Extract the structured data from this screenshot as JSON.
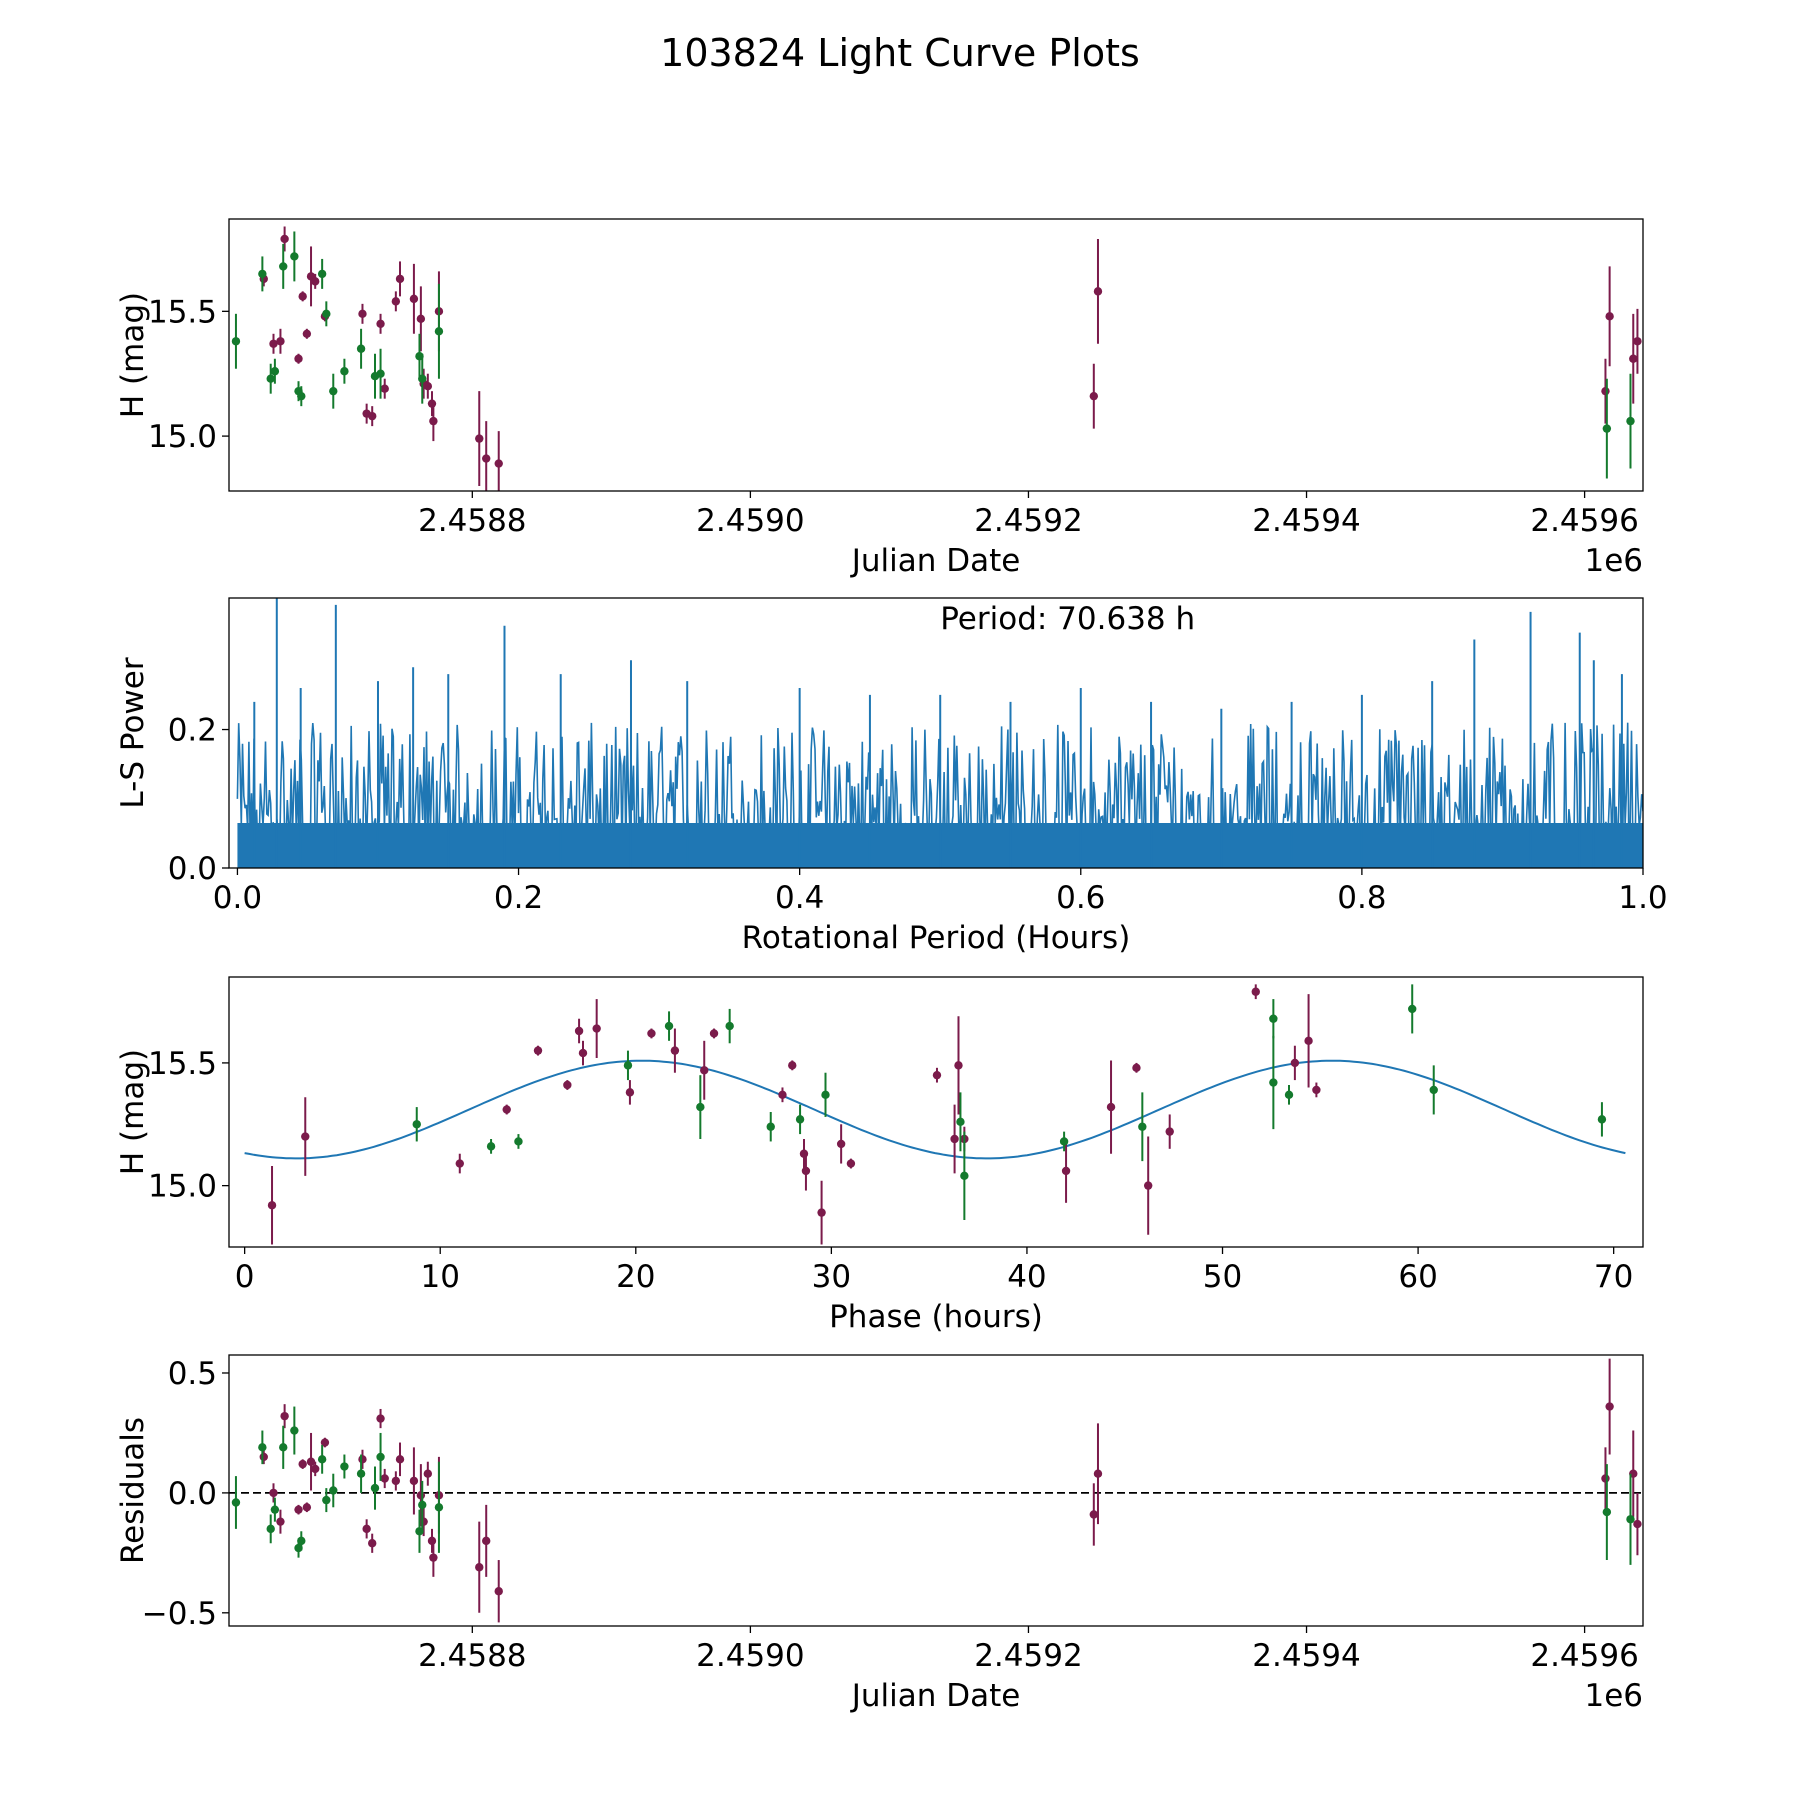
{
  "figure_title": "103824 Light Curve Plots",
  "colors": {
    "band_a": "#7b1b4b",
    "band_b": "#147a2d",
    "curve": "#1f77b4",
    "zero_line": "#000000"
  },
  "chart_data": [
    {
      "type": "scatter",
      "panel": "light-curve",
      "title": "",
      "xlabel": "Julian Date",
      "ylabel": "H (mag)",
      "x_offset_label": "1e6",
      "xlim": [
        2458625,
        2459642
      ],
      "ylim": [
        14.78,
        15.87
      ],
      "xticks": [
        2458800,
        2459000,
        2459200,
        2459400,
        2459600
      ],
      "xtick_labels": [
        "2.4588",
        "2.4590",
        "2.4592",
        "2.4594",
        "2.4596"
      ],
      "yticks": [
        15.0,
        15.5
      ],
      "ytick_labels": [
        "15.0",
        "15.5"
      ],
      "series": [
        {
          "name": "band_a",
          "color": "#7b1b4b",
          "points": [
            [
              2458650,
              15.63,
              0.03
            ],
            [
              2458657,
              15.37,
              0.04
            ],
            [
              2458662,
              15.38,
              0.05
            ],
            [
              2458665,
              15.79,
              0.05
            ],
            [
              2458675,
              15.31,
              0.02
            ],
            [
              2458678,
              15.56,
              0.02
            ],
            [
              2458681,
              15.41,
              0.02
            ],
            [
              2458684,
              15.64,
              0.12
            ],
            [
              2458687,
              15.62,
              0.03
            ],
            [
              2458694,
              15.48,
              0.02
            ],
            [
              2458721,
              15.49,
              0.04
            ],
            [
              2458724,
              15.09,
              0.04
            ],
            [
              2458728,
              15.08,
              0.04
            ],
            [
              2458734,
              15.45,
              0.04
            ],
            [
              2458737,
              15.19,
              0.04
            ],
            [
              2458745,
              15.54,
              0.04
            ],
            [
              2458748,
              15.63,
              0.07
            ],
            [
              2458758,
              15.55,
              0.14
            ],
            [
              2458763,
              15.47,
              0.13
            ],
            [
              2458765,
              15.21,
              0.06
            ],
            [
              2458768,
              15.2,
              0.05
            ],
            [
              2458771,
              15.13,
              0.05
            ],
            [
              2458772,
              15.06,
              0.08
            ],
            [
              2458776,
              15.5,
              0.16
            ],
            [
              2458805,
              14.99,
              0.19
            ],
            [
              2458810,
              14.91,
              0.15
            ],
            [
              2458819,
              14.89,
              0.13
            ],
            [
              2459247,
              15.16,
              0.13
            ],
            [
              2459250,
              15.58,
              0.21
            ],
            [
              2459615,
              15.18,
              0.13
            ],
            [
              2459618,
              15.48,
              0.2
            ],
            [
              2459635,
              15.31,
              0.18
            ],
            [
              2459638,
              15.38,
              0.13
            ]
          ]
        },
        {
          "name": "band_b",
          "color": "#147a2d",
          "points": [
            [
              2458630,
              15.38,
              0.11
            ],
            [
              2458649,
              15.65,
              0.07
            ],
            [
              2458655,
              15.23,
              0.06
            ],
            [
              2458658,
              15.26,
              0.05
            ],
            [
              2458664,
              15.68,
              0.09
            ],
            [
              2458672,
              15.72,
              0.1
            ],
            [
              2458675,
              15.18,
              0.04
            ],
            [
              2458677,
              15.16,
              0.04
            ],
            [
              2458692,
              15.65,
              0.06
            ],
            [
              2458695,
              15.49,
              0.05
            ],
            [
              2458700,
              15.18,
              0.07
            ],
            [
              2458708,
              15.26,
              0.05
            ],
            [
              2458720,
              15.35,
              0.08
            ],
            [
              2458730,
              15.24,
              0.09
            ],
            [
              2458734,
              15.25,
              0.1
            ],
            [
              2458762,
              15.32,
              0.09
            ],
            [
              2458764,
              15.23,
              0.1
            ],
            [
              2458776,
              15.42,
              0.19
            ],
            [
              2459616,
              15.03,
              0.2
            ],
            [
              2459633,
              15.06,
              0.19
            ]
          ]
        }
      ]
    },
    {
      "type": "line",
      "panel": "periodogram",
      "title": "",
      "annotation": "Period: 70.638 h",
      "xlabel": "Rotational Period (Hours)",
      "ylabel": "L-S Power",
      "xlim": [
        -0.006,
        1.0
      ],
      "ylim": [
        0.0,
        0.39
      ],
      "xticks": [
        0.0,
        0.2,
        0.4,
        0.6,
        0.8,
        1.0
      ],
      "xtick_labels": [
        "0.0",
        "0.2",
        "0.4",
        "0.6",
        "0.8",
        "1.0"
      ],
      "yticks": [
        0.0,
        0.2
      ],
      "ytick_labels": [
        "0.0",
        "0.2"
      ],
      "x_range": [
        0.0,
        1.0
      ],
      "noise_floor": 0.07,
      "noise_typical_peak": 0.16,
      "peaks": [
        [
          0.012,
          0.24
        ],
        [
          0.028,
          0.39
        ],
        [
          0.045,
          0.26
        ],
        [
          0.07,
          0.38
        ],
        [
          0.1,
          0.27
        ],
        [
          0.125,
          0.29
        ],
        [
          0.15,
          0.28
        ],
        [
          0.19,
          0.35
        ],
        [
          0.23,
          0.28
        ],
        [
          0.28,
          0.3
        ],
        [
          0.32,
          0.27
        ],
        [
          0.4,
          0.26
        ],
        [
          0.45,
          0.25
        ],
        [
          0.5,
          0.25
        ],
        [
          0.55,
          0.24
        ],
        [
          0.6,
          0.26
        ],
        [
          0.65,
          0.24
        ],
        [
          0.7,
          0.23
        ],
        [
          0.75,
          0.24
        ],
        [
          0.8,
          0.25
        ],
        [
          0.85,
          0.27
        ],
        [
          0.88,
          0.33
        ],
        [
          0.92,
          0.37
        ],
        [
          0.955,
          0.34
        ],
        [
          0.965,
          0.3
        ],
        [
          0.985,
          0.28
        ]
      ]
    },
    {
      "type": "scatter",
      "panel": "phase-folded",
      "title": "",
      "xlabel": "Phase (hours)",
      "ylabel": "H (mag)",
      "xlim": [
        -0.8,
        71.5
      ],
      "ylim": [
        14.75,
        15.85
      ],
      "xticks": [
        0,
        10,
        20,
        30,
        40,
        50,
        60,
        70
      ],
      "xtick_labels": [
        "0",
        "10",
        "20",
        "30",
        "40",
        "50",
        "60",
        "70"
      ],
      "yticks": [
        15.0,
        15.5
      ],
      "ytick_labels": [
        "15.0",
        "15.5"
      ],
      "model_curve": {
        "mean": 15.31,
        "amplitude": 0.199,
        "period": 35.3,
        "peak_phase": 20.3,
        "phase_range": [
          0.0,
          70.6
        ]
      },
      "series": [
        {
          "name": "band_a",
          "color": "#7b1b4b",
          "points": [
            [
              1.4,
              14.92,
              0.16
            ],
            [
              3.1,
              15.2,
              0.16
            ],
            [
              11,
              15.09,
              0.04
            ],
            [
              13.4,
              15.31,
              0.02
            ],
            [
              15,
              15.55,
              0.02
            ],
            [
              16.5,
              15.41,
              0.02
            ],
            [
              17.1,
              15.63,
              0.05
            ],
            [
              17.3,
              15.54,
              0.05
            ],
            [
              18,
              15.64,
              0.12
            ],
            [
              19.7,
              15.38,
              0.05
            ],
            [
              20.8,
              15.62,
              0.02
            ],
            [
              22,
              15.55,
              0.09
            ],
            [
              23.5,
              15.47,
              0.12
            ],
            [
              24,
              15.62,
              0.02
            ],
            [
              27.5,
              15.37,
              0.03
            ],
            [
              28,
              15.49,
              0.02
            ],
            [
              28.6,
              15.13,
              0.06
            ],
            [
              28.7,
              15.06,
              0.08
            ],
            [
              29.5,
              14.89,
              0.13
            ],
            [
              30.5,
              15.17,
              0.08
            ],
            [
              31,
              15.09,
              0.02
            ],
            [
              35.4,
              15.45,
              0.03
            ],
            [
              36.3,
              15.19,
              0.14
            ],
            [
              36.5,
              15.49,
              0.2
            ],
            [
              36.8,
              15.19,
              0.05
            ],
            [
              42,
              15.06,
              0.13
            ],
            [
              44.3,
              15.32,
              0.19
            ],
            [
              45.6,
              15.48,
              0.02
            ],
            [
              46.2,
              15.0,
              0.2
            ],
            [
              47.3,
              15.22,
              0.07
            ],
            [
              51.7,
              15.79,
              0.03
            ],
            [
              53.7,
              15.5,
              0.07
            ],
            [
              54.4,
              15.59,
              0.19
            ],
            [
              54.8,
              15.39,
              0.03
            ]
          ]
        },
        {
          "name": "band_b",
          "color": "#147a2d",
          "points": [
            [
              8.8,
              15.25,
              0.07
            ],
            [
              12.6,
              15.16,
              0.03
            ],
            [
              14,
              15.18,
              0.03
            ],
            [
              19.6,
              15.49,
              0.06
            ],
            [
              21.7,
              15.65,
              0.06
            ],
            [
              23.3,
              15.32,
              0.13
            ],
            [
              24.8,
              15.65,
              0.07
            ],
            [
              26.9,
              15.24,
              0.06
            ],
            [
              28.4,
              15.27,
              0.06
            ],
            [
              29.7,
              15.37,
              0.09
            ],
            [
              36.6,
              15.26,
              0.12
            ],
            [
              36.8,
              15.04,
              0.18
            ],
            [
              41.9,
              15.18,
              0.04
            ],
            [
              45.9,
              15.24,
              0.14
            ],
            [
              52.6,
              15.68,
              0.08
            ],
            [
              52.6,
              15.42,
              0.19
            ],
            [
              53.4,
              15.37,
              0.04
            ],
            [
              59.7,
              15.72,
              0.1
            ],
            [
              60.8,
              15.39,
              0.1
            ],
            [
              69.4,
              15.27,
              0.07
            ]
          ]
        }
      ]
    },
    {
      "type": "scatter",
      "panel": "residuals",
      "title": "",
      "xlabel": "Julian Date",
      "ylabel": "Residuals",
      "x_offset_label": "1e6",
      "xlim": [
        2458625,
        2459642
      ],
      "ylim": [
        -0.555,
        0.575
      ],
      "xticks": [
        2458800,
        2459000,
        2459200,
        2459400,
        2459600
      ],
      "xtick_labels": [
        "2.4588",
        "2.4590",
        "2.4592",
        "2.4594",
        "2.4596"
      ],
      "yticks": [
        -0.5,
        0.0,
        0.5
      ],
      "ytick_labels": [
        "−0.5",
        "0.0",
        "0.5"
      ],
      "zero_line": 0.0,
      "series": [
        {
          "name": "band_a",
          "color": "#7b1b4b",
          "points": [
            [
              2458650,
              0.15,
              0.03
            ],
            [
              2458657,
              0.0,
              0.04
            ],
            [
              2458662,
              -0.12,
              0.05
            ],
            [
              2458665,
              0.32,
              0.05
            ],
            [
              2458675,
              -0.07,
              0.02
            ],
            [
              2458678,
              0.12,
              0.02
            ],
            [
              2458681,
              -0.06,
              0.02
            ],
            [
              2458684,
              0.13,
              0.12
            ],
            [
              2458687,
              0.1,
              0.03
            ],
            [
              2458694,
              0.21,
              0.02
            ],
            [
              2458721,
              0.14,
              0.04
            ],
            [
              2458724,
              -0.15,
              0.04
            ],
            [
              2458728,
              -0.21,
              0.04
            ],
            [
              2458734,
              0.31,
              0.04
            ],
            [
              2458737,
              0.06,
              0.04
            ],
            [
              2458745,
              0.05,
              0.04
            ],
            [
              2458748,
              0.14,
              0.07
            ],
            [
              2458758,
              0.05,
              0.14
            ],
            [
              2458763,
              -0.01,
              0.13
            ],
            [
              2458765,
              -0.12,
              0.06
            ],
            [
              2458768,
              0.08,
              0.05
            ],
            [
              2458771,
              -0.2,
              0.05
            ],
            [
              2458772,
              -0.27,
              0.08
            ],
            [
              2458776,
              -0.01,
              0.16
            ],
            [
              2458805,
              -0.31,
              0.19
            ],
            [
              2458810,
              -0.2,
              0.15
            ],
            [
              2458819,
              -0.41,
              0.13
            ],
            [
              2459247,
              -0.09,
              0.13
            ],
            [
              2459250,
              0.08,
              0.21
            ],
            [
              2459615,
              0.06,
              0.13
            ],
            [
              2459618,
              0.36,
              0.2
            ],
            [
              2459635,
              0.08,
              0.18
            ],
            [
              2459638,
              -0.13,
              0.13
            ]
          ]
        },
        {
          "name": "band_b",
          "color": "#147a2d",
          "points": [
            [
              2458630,
              -0.04,
              0.11
            ],
            [
              2458649,
              0.19,
              0.07
            ],
            [
              2458655,
              -0.15,
              0.06
            ],
            [
              2458658,
              -0.07,
              0.05
            ],
            [
              2458664,
              0.19,
              0.09
            ],
            [
              2458672,
              0.26,
              0.1
            ],
            [
              2458675,
              -0.23,
              0.04
            ],
            [
              2458677,
              -0.2,
              0.04
            ],
            [
              2458692,
              0.14,
              0.06
            ],
            [
              2458695,
              -0.03,
              0.05
            ],
            [
              2458700,
              0.01,
              0.07
            ],
            [
              2458708,
              0.11,
              0.05
            ],
            [
              2458720,
              0.08,
              0.08
            ],
            [
              2458730,
              0.02,
              0.09
            ],
            [
              2458734,
              0.15,
              0.1
            ],
            [
              2458762,
              -0.16,
              0.09
            ],
            [
              2458764,
              -0.05,
              0.1
            ],
            [
              2458776,
              -0.06,
              0.19
            ],
            [
              2459616,
              -0.08,
              0.2
            ],
            [
              2459633,
              -0.11,
              0.19
            ]
          ]
        }
      ]
    }
  ]
}
